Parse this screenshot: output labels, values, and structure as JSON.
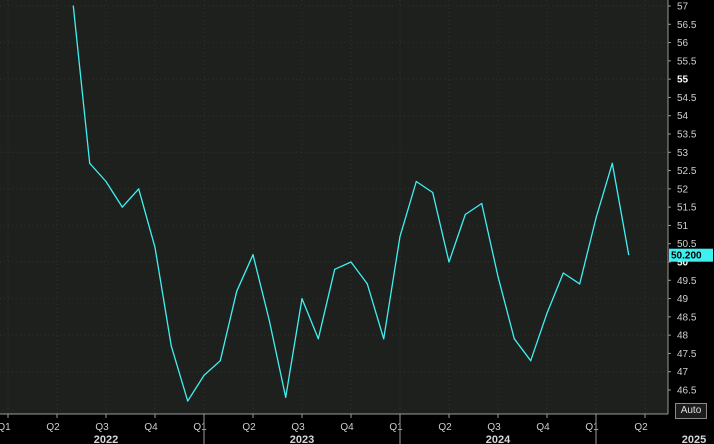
{
  "chart_data": {
    "type": "line",
    "title": "",
    "xlabel": "",
    "ylabel": "",
    "ylim": [
      46,
      57
    ],
    "y_ticks": [
      46.5,
      47,
      47.5,
      48,
      48.5,
      49,
      49.5,
      50,
      50.5,
      51,
      51.5,
      52,
      52.5,
      53,
      53.5,
      54,
      54.5,
      55,
      55.5,
      56,
      56.5,
      57
    ],
    "y_tick_labels": [
      "46.5",
      "47",
      "47.5",
      "48",
      "48.5",
      "49",
      "49.5",
      "50",
      "50.5",
      "51",
      "51.5",
      "52",
      "52.5",
      "53",
      "53.5",
      "54",
      "54.5",
      "55",
      "55.5",
      "56",
      "56.5",
      "57"
    ],
    "bold_ticks": [
      "55",
      "50"
    ],
    "grid": true,
    "quarter_labels": [
      "Q1",
      "Q2",
      "Q3",
      "Q4",
      "Q1",
      "Q2",
      "Q3",
      "Q4",
      "Q1",
      "Q2",
      "Q3",
      "Q4",
      "Q1",
      "Q2"
    ],
    "year_labels": [
      "2022",
      "2023",
      "2024",
      "2025"
    ],
    "series": [
      {
        "color": "#3ff0f0",
        "x": [
          "2022-05",
          "2022-06",
          "2022-07",
          "2022-08",
          "2022-09",
          "2022-10",
          "2022-11",
          "2022-12",
          "2023-01",
          "2023-02",
          "2023-03",
          "2023-04",
          "2023-05",
          "2023-06",
          "2023-07",
          "2023-08",
          "2023-09",
          "2023-10",
          "2023-11",
          "2023-12",
          "2024-01",
          "2024-02",
          "2024-03",
          "2024-04",
          "2024-05",
          "2024-06",
          "2024-07",
          "2024-08",
          "2024-09",
          "2024-10",
          "2024-11",
          "2024-12",
          "2025-01",
          "2025-02",
          "2025-03"
        ],
        "values": [
          57.0,
          52.7,
          52.2,
          51.5,
          52.0,
          50.4,
          47.7,
          46.2,
          46.9,
          47.3,
          49.2,
          50.2,
          48.4,
          46.3,
          49.0,
          47.9,
          49.8,
          50.0,
          49.4,
          47.9,
          50.7,
          52.2,
          51.9,
          50.0,
          51.3,
          51.6,
          49.6,
          47.9,
          47.3,
          48.6,
          49.7,
          49.4,
          51.2,
          52.7,
          50.2
        ]
      }
    ],
    "last_value_label": "50.200"
  },
  "controls": {
    "auto_label": "Auto"
  }
}
